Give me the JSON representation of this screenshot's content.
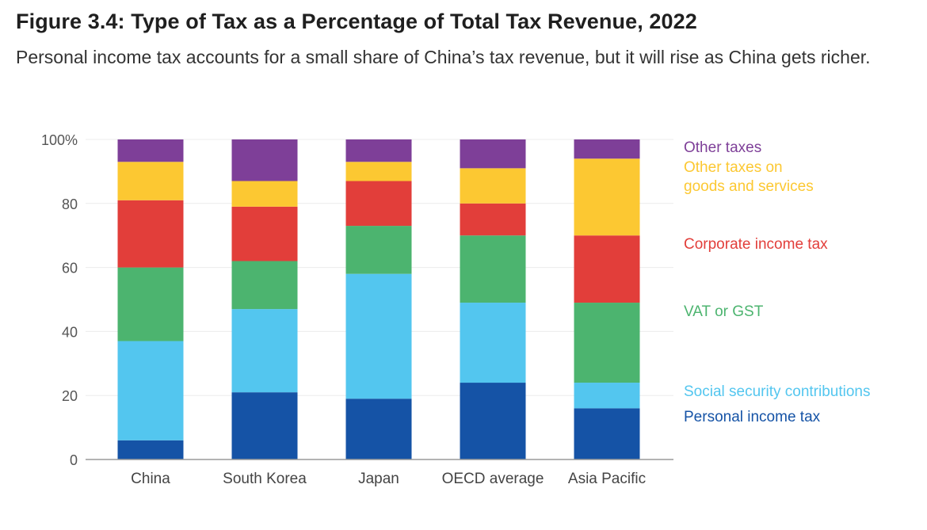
{
  "figure": {
    "title": "Figure 3.4: Type of Tax as a Percentage of Total Tax Revenue, 2022",
    "subtitle": "Personal income tax accounts for a small share of China’s tax revenue, but it will rise as China gets richer."
  },
  "chart_data": {
    "type": "bar",
    "stacked": true,
    "title": "Figure 3.4: Type of Tax as a Percentage of Total Tax Revenue, 2022",
    "xlabel": "",
    "ylabel": "",
    "ylim": [
      0,
      100
    ],
    "yticks": [
      0,
      20,
      40,
      60,
      80,
      100
    ],
    "ytick_labels": [
      "0",
      "20",
      "40",
      "60",
      "80",
      "100%"
    ],
    "grid": true,
    "legend_placement": "right",
    "categories": [
      "China",
      "South Korea",
      "Japan",
      "OECD average",
      "Asia Pacific"
    ],
    "series": [
      {
        "name": "Personal income tax",
        "lines": [
          "Personal income tax"
        ],
        "color": "#1553a6",
        "values": [
          6,
          21,
          19,
          24,
          16
        ]
      },
      {
        "name": "Social security contributions",
        "lines": [
          "Social security contributions"
        ],
        "color": "#53c6ef",
        "values": [
          31,
          26,
          39,
          25,
          8
        ]
      },
      {
        "name": "VAT or GST",
        "lines": [
          "VAT or GST"
        ],
        "color": "#4cb46f",
        "values": [
          23,
          15,
          15,
          21,
          25
        ]
      },
      {
        "name": "Corporate income tax",
        "lines": [
          "Corporate income tax"
        ],
        "color": "#e23e3a",
        "values": [
          21,
          17,
          14,
          10,
          21
        ]
      },
      {
        "name": "Other taxes on goods and services",
        "lines": [
          "Other taxes on",
          "goods and services"
        ],
        "color": "#fcc832",
        "values": [
          12,
          8,
          6,
          11,
          24
        ]
      },
      {
        "name": "Other taxes",
        "lines": [
          "Other taxes"
        ],
        "color": "#7e3f98",
        "values": [
          7,
          13,
          7,
          9,
          6
        ]
      }
    ]
  }
}
